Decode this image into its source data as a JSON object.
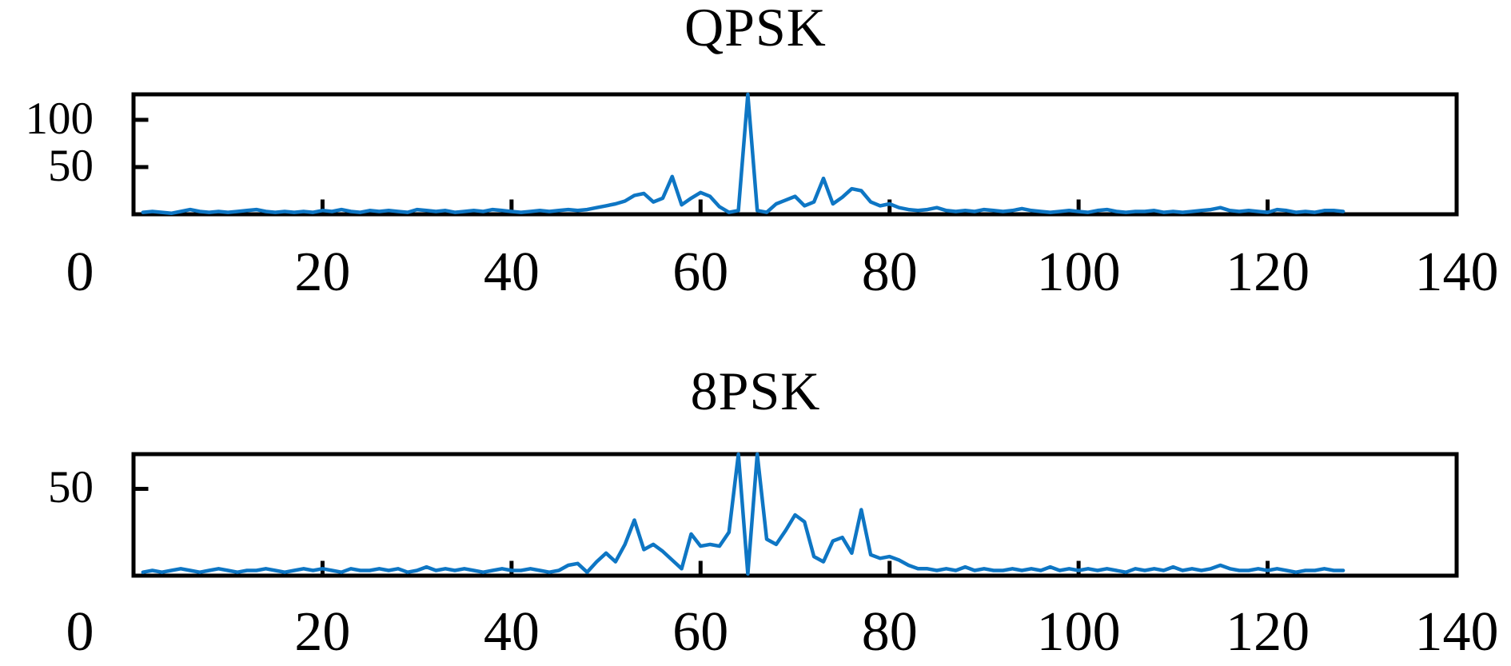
{
  "figure": {
    "background": "#ffffff",
    "axis_color": "#000000"
  },
  "chart_data": [
    {
      "type": "line",
      "title": "QPSK",
      "xlabel": "",
      "ylabel": "",
      "xlim": [
        0,
        140
      ],
      "ylim": [
        0,
        127
      ],
      "grid": false,
      "legend": null,
      "line_color": "#0e76c4",
      "x_tick_values": [
        0,
        20,
        40,
        60,
        80,
        100,
        120,
        140
      ],
      "x_tick_labels": [
        "0",
        "20",
        "40",
        "60",
        "80",
        "100",
        "120",
        "140"
      ],
      "y_tick_values": [
        50,
        100
      ],
      "y_tick_labels": [
        "50",
        "100"
      ],
      "x_start": 1,
      "x_step": 1,
      "values": [
        2,
        3,
        2,
        1,
        3,
        5,
        3,
        2,
        3,
        2,
        3,
        4,
        5,
        3,
        2,
        3,
        2,
        3,
        2,
        4,
        3,
        5,
        3,
        2,
        4,
        3,
        4,
        3,
        2,
        5,
        4,
        3,
        4,
        2,
        3,
        4,
        3,
        5,
        4,
        3,
        2,
        3,
        4,
        3,
        4,
        5,
        4,
        5,
        7,
        9,
        11,
        14,
        20,
        22,
        13,
        17,
        40,
        10,
        17,
        23,
        19,
        8,
        2,
        4,
        127,
        4,
        2,
        11,
        15,
        19,
        9,
        13,
        38,
        11,
        18,
        27,
        25,
        13,
        9,
        11,
        7,
        5,
        4,
        5,
        7,
        4,
        3,
        4,
        3,
        5,
        4,
        3,
        4,
        6,
        4,
        3,
        2,
        3,
        4,
        3,
        2,
        4,
        5,
        3,
        2,
        3,
        3,
        4,
        2,
        3,
        2,
        3,
        4,
        5,
        7,
        4,
        3,
        4,
        3,
        2,
        5,
        4,
        2,
        3,
        2,
        4,
        4,
        3
      ]
    },
    {
      "type": "line",
      "title": "8PSK",
      "xlabel": "",
      "ylabel": "",
      "xlim": [
        0,
        140
      ],
      "ylim": [
        0,
        70
      ],
      "grid": false,
      "legend": null,
      "line_color": "#0e76c4",
      "x_tick_values": [
        0,
        20,
        40,
        60,
        80,
        100,
        120,
        140
      ],
      "x_tick_labels": [
        "0",
        "20",
        "40",
        "60",
        "80",
        "100",
        "120",
        "140"
      ],
      "y_tick_values": [
        50
      ],
      "y_tick_labels": [
        "50"
      ],
      "x_start": 1,
      "x_step": 1,
      "values": [
        2,
        3,
        2,
        3,
        4,
        3,
        2,
        3,
        4,
        3,
        2,
        3,
        3,
        4,
        3,
        2,
        3,
        4,
        3,
        4,
        3,
        2,
        4,
        3,
        3,
        4,
        3,
        4,
        2,
        3,
        5,
        3,
        4,
        3,
        4,
        3,
        2,
        3,
        4,
        3,
        3,
        4,
        3,
        2,
        3,
        6,
        7,
        2,
        8,
        13,
        8,
        18,
        32,
        15,
        18,
        14,
        9,
        4,
        24,
        17,
        18,
        17,
        25,
        70,
        1,
        70,
        21,
        18,
        26,
        35,
        31,
        11,
        8,
        20,
        22,
        13,
        38,
        12,
        10,
        11,
        9,
        6,
        4,
        4,
        3,
        4,
        3,
        5,
        3,
        4,
        3,
        3,
        4,
        3,
        4,
        3,
        5,
        3,
        4,
        3,
        4,
        3,
        4,
        3,
        2,
        4,
        3,
        4,
        3,
        5,
        3,
        4,
        3,
        4,
        6,
        4,
        3,
        3,
        4,
        3,
        4,
        3,
        2,
        3,
        3,
        4,
        3,
        3
      ]
    }
  ]
}
